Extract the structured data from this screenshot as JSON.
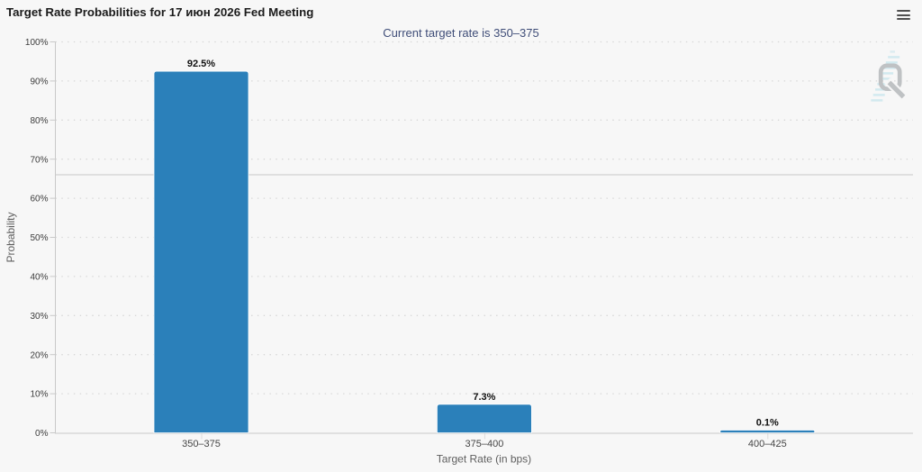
{
  "header": {
    "title": "Target Rate Probabilities for 17 июн 2026 Fed Meeting",
    "subtitle": "Current target rate is 350–375",
    "menu_icon": "hamburger"
  },
  "chart_data": {
    "type": "bar",
    "title": "Target Rate Probabilities for 17 июн 2026 Fed Meeting",
    "subtitle": "Current target rate is 350–375",
    "categories": [
      "350–375",
      "375–400",
      "400–425"
    ],
    "series": [
      {
        "name": "Probability",
        "values": [
          92.5,
          7.3,
          0.1
        ]
      }
    ],
    "data_labels": [
      "92.5%",
      "7.3%",
      "0.1%"
    ],
    "xlabel": "Target Rate (in bps)",
    "ylabel": "Probability",
    "ylim": [
      0,
      100
    ],
    "ytick_step": 10,
    "ytick_suffix": "%",
    "grid": "horizontal-dotted",
    "legend": "none",
    "reference_line": 66,
    "colors": {
      "bar": "#2b80ba",
      "subtitle": "#3f4d78",
      "title": "#1b1b1b",
      "grid": "#d7d7d7",
      "axis_line": "#c9c9c9",
      "reference_line": "#c7c7c7",
      "tick_label": "#3c3c3c",
      "category_label": "#464646",
      "axis_title": "#5f5f5f",
      "background": "#f7f7f7",
      "watermark_gray": "#b6b9bc",
      "watermark_teal": "#a2d8e5"
    }
  }
}
